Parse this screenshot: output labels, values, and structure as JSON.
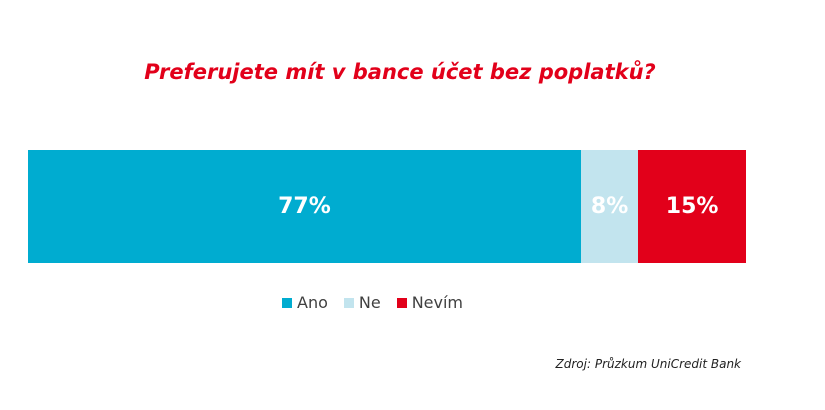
{
  "chart_data": {
    "type": "bar",
    "stacked": true,
    "orientation": "horizontal",
    "title": "Preferujete mít v bance účet bez poplatků?",
    "series": [
      {
        "name": "Ano",
        "value": 77,
        "label": "77%",
        "color": "#00acd0",
        "label_color": "#ffffff"
      },
      {
        "name": "Ne",
        "value": 8,
        "label": "8%",
        "color": "#c2e4ee",
        "label_color": "#ffffff"
      },
      {
        "name": "Nevím",
        "value": 15,
        "label": "15%",
        "color": "#e2001a",
        "label_color": "#ffffff"
      }
    ],
    "total": 100,
    "legend": "bottom",
    "source": "Zdroj: Průzkum UniCredit Bank"
  }
}
